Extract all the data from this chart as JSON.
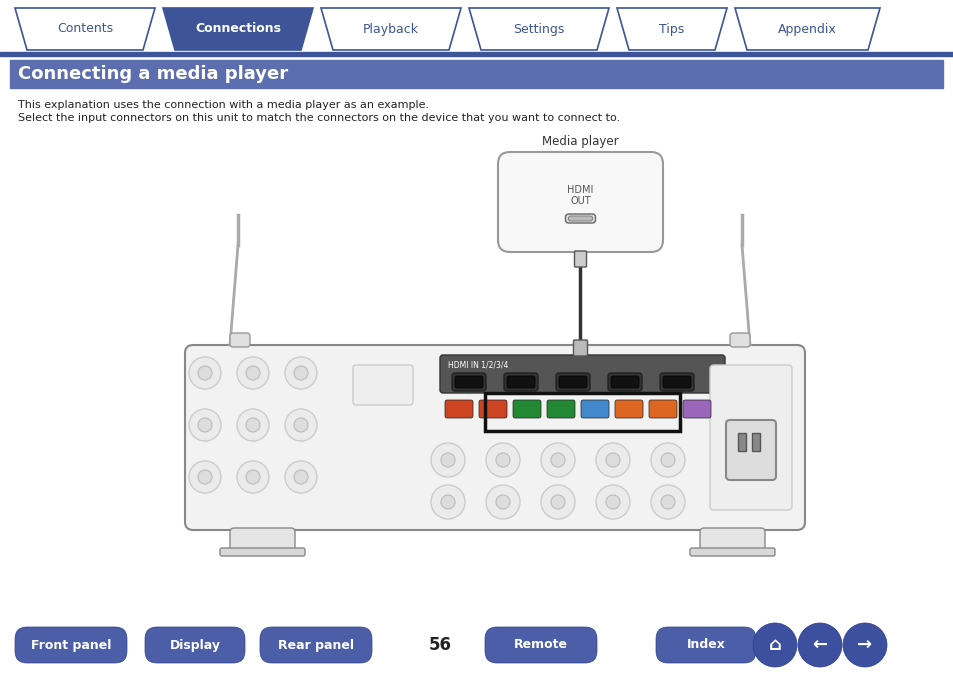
{
  "bg_color": "#ffffff",
  "tab_items": [
    "Contents",
    "Connections",
    "Playback",
    "Settings",
    "Tips",
    "Appendix"
  ],
  "tab_active_index": 1,
  "tab_active_color": "#3d5598",
  "tab_inactive_color": "#ffffff",
  "tab_text_active_color": "#ffffff",
  "tab_text_inactive_color": "#3d5598",
  "tab_border_color": "#3d5598",
  "nav_line_color": "#3d5598",
  "section_title": "Connecting a media player",
  "section_title_bg": "#5c6db0",
  "section_title_color": "#ffffff",
  "desc_line1": "This explanation uses the connection with a media player as an example.",
  "desc_line2": "Select the input connectors on this unit to match the connectors on the device that you want to connect to.",
  "page_number": "56",
  "bottom_buttons": [
    "Front panel",
    "Display",
    "Rear panel",
    "Remote",
    "Index"
  ],
  "bottom_btn_color": "#3d50a0",
  "bottom_btn_text_color": "#ffffff",
  "media_player_label": "Media player",
  "hdmi_label1": "HDMI",
  "hdmi_label2": "OUT"
}
